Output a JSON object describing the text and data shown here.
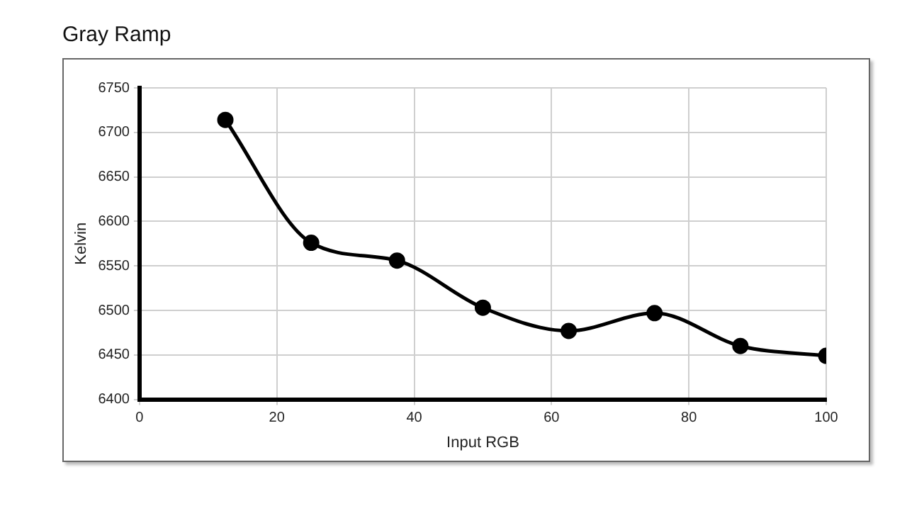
{
  "chart_data": {
    "type": "line",
    "title": "Gray Ramp",
    "xlabel": "Input RGB",
    "ylabel": "Kelvin",
    "x": [
      12.5,
      25,
      37.5,
      50,
      62.5,
      75,
      87.5,
      100
    ],
    "series": [
      {
        "color": "#000000",
        "values": [
          6714,
          6576,
          6556,
          6503,
          6477,
          6497,
          6460,
          6449
        ]
      }
    ],
    "xlim": [
      0,
      100
    ],
    "xticks": [
      0,
      20,
      40,
      60,
      80,
      100
    ],
    "ylim": [
      6400,
      6750
    ],
    "yticks": [
      6400,
      6450,
      6500,
      6550,
      6600,
      6650,
      6700,
      6750
    ],
    "grid": true,
    "legend": false,
    "marker": "circle",
    "line_style": "solid"
  }
}
